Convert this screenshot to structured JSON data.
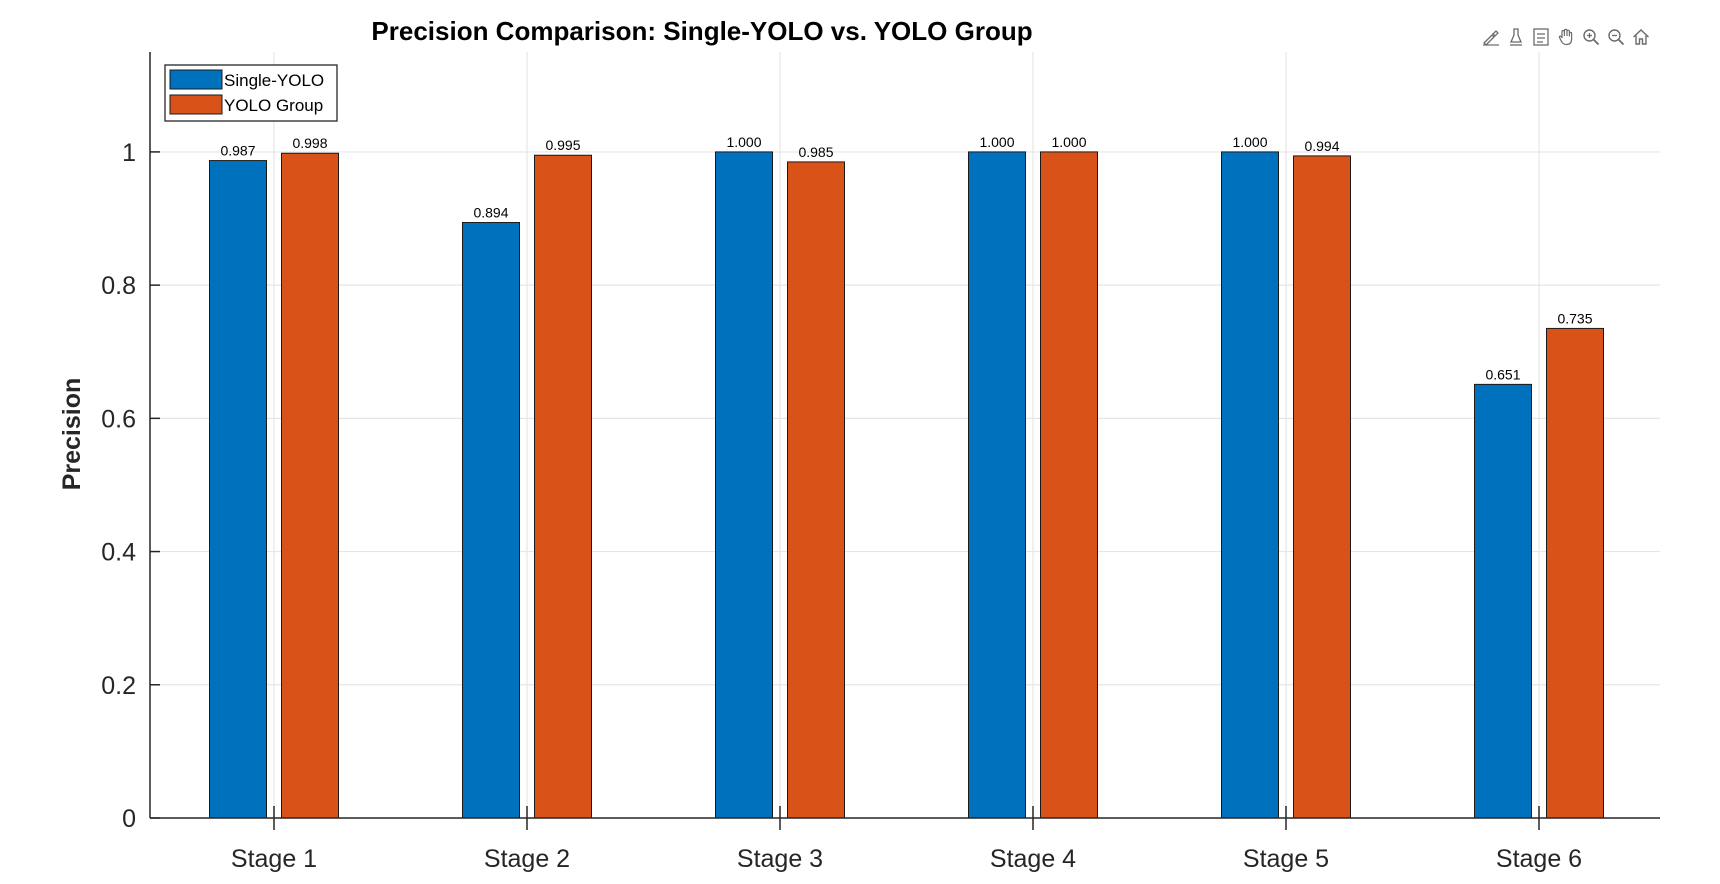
{
  "chart_data": {
    "type": "bar",
    "title": "Precision Comparison: Single-YOLO vs. YOLO Group",
    "xlabel": "",
    "ylabel": "Precision",
    "categories": [
      "Stage 1",
      "Stage 2",
      "Stage 3",
      "Stage 4",
      "Stage 5",
      "Stage 6"
    ],
    "series": [
      {
        "name": "Single-YOLO",
        "color": "#0072BD",
        "values": [
          0.987,
          0.894,
          1.0,
          1.0,
          1.0,
          0.651
        ],
        "labels": [
          "0.987",
          "0.894",
          "1.000",
          "1.000",
          "1.000",
          "0.651"
        ]
      },
      {
        "name": "YOLO Group",
        "color": "#D95319",
        "values": [
          0.998,
          0.995,
          0.985,
          1.0,
          0.994,
          0.735
        ],
        "labels": [
          "0.998",
          "0.995",
          "0.985",
          "1.000",
          "0.994",
          "0.735"
        ]
      }
    ],
    "ylim": [
      0,
      1.15
    ],
    "yticks": [
      0,
      0.2,
      0.4,
      0.6,
      0.8,
      1
    ],
    "ytick_labels": [
      "0",
      "0.2",
      "0.4",
      "0.6",
      "0.8",
      "1"
    ],
    "grid": true,
    "legend_position": "top-left"
  },
  "toolbar": {
    "icons": [
      "brush-icon",
      "data-tips-icon",
      "legend-icon",
      "pan-icon",
      "zoom-in-icon",
      "zoom-out-icon",
      "home-icon"
    ]
  },
  "colors": {
    "grid": "#e6e6e6",
    "axis": "#262626",
    "text": "#262626"
  }
}
